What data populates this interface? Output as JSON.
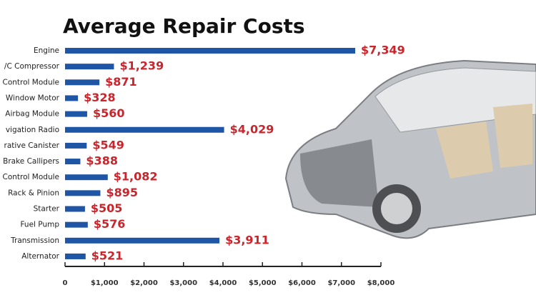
{
  "chart_data": {
    "type": "bar",
    "orientation": "horizontal",
    "title": "Average Repair Costs",
    "categories": [
      "Engine",
      "/C Compressor",
      "Control Module",
      "Window Motor",
      "Airbag Module",
      "vigation Radio",
      "rative Canister",
      "Brake Callipers",
      "Control Module",
      "Rack & Pinion",
      "Starter",
      "Fuel Pump",
      "Transmission",
      "Alternator"
    ],
    "values": [
      7349,
      1239,
      871,
      328,
      560,
      4029,
      549,
      388,
      1082,
      895,
      505,
      576,
      3911,
      521
    ],
    "value_labels": [
      "$7,349",
      "$1,239",
      "$871",
      "$328",
      "$560",
      "$4,029",
      "$549",
      "$388",
      "$1,082",
      "$895",
      "$505",
      "$576",
      "$3,911",
      "$521"
    ],
    "color": "#1e55a5",
    "label_color": "#c8252c",
    "xlim": [
      0,
      8000
    ],
    "xticks": [
      0,
      {
        "value": 1000,
        "label": "$1,000"
      },
      {
        "value": 2000,
        "label": "$2,000"
      },
      {
        "value": 3000,
        "label": "$3,000"
      },
      {
        "value": 4000,
        "label": "$4,000"
      },
      {
        "value": 5000,
        "label": "$5,000"
      },
      {
        "value": 6000,
        "label": "$6,000"
      },
      {
        "value": 7000,
        "label": "$7,000"
      },
      {
        "value": 8000,
        "label": "$8,000"
      }
    ],
    "grid": false
  }
}
